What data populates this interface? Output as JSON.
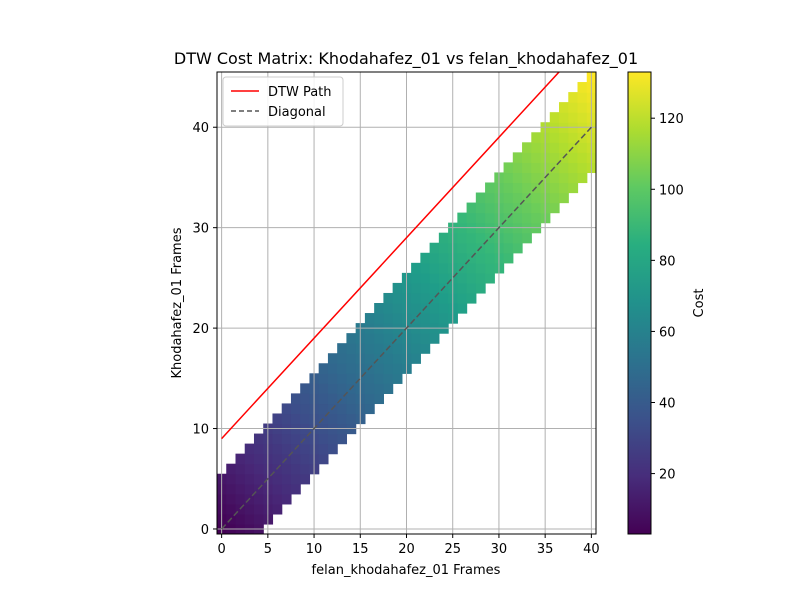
{
  "chart_data": {
    "type": "heatmap",
    "title": "DTW Cost Matrix: Khodahafez_01 vs felan_khodahafez_01",
    "xlabel": "felan_khodahafez_01 Frames",
    "ylabel": "Khodahafez_01 Frames",
    "xlim": [
      -0.5,
      40.5
    ],
    "ylim": [
      -0.5,
      45.5
    ],
    "x_ticks": [
      0,
      5,
      10,
      15,
      20,
      25,
      30,
      35,
      40
    ],
    "y_ticks": [
      0,
      10,
      20,
      30,
      40
    ],
    "grid": true,
    "colormap": "viridis",
    "colorbar": {
      "label": "Cost",
      "range": [
        3,
        133
      ],
      "ticks": [
        20,
        40,
        60,
        80,
        100,
        120
      ]
    },
    "band": {
      "description": "Sakoe-Chiba style band of computed cells; cells outside band are empty",
      "rows": 46,
      "cols": 41,
      "cost_min": 3,
      "cost_max": 133
    },
    "series": [
      {
        "name": "DTW Path",
        "type": "line",
        "color": "#ff0000",
        "style": "solid",
        "x": [
          0,
          40
        ],
        "y": [
          9,
          49
        ]
      },
      {
        "name": "Diagonal",
        "type": "line",
        "color": "#555555",
        "style": "dashed",
        "x": [
          0,
          40
        ],
        "y": [
          0,
          40
        ]
      }
    ],
    "legend": {
      "position": "top-left",
      "entries": [
        "DTW Path",
        "Diagonal"
      ]
    }
  },
  "colors": {
    "path": "#ff0000",
    "diagonal": "#555555",
    "grid": "#b0b0b0"
  }
}
